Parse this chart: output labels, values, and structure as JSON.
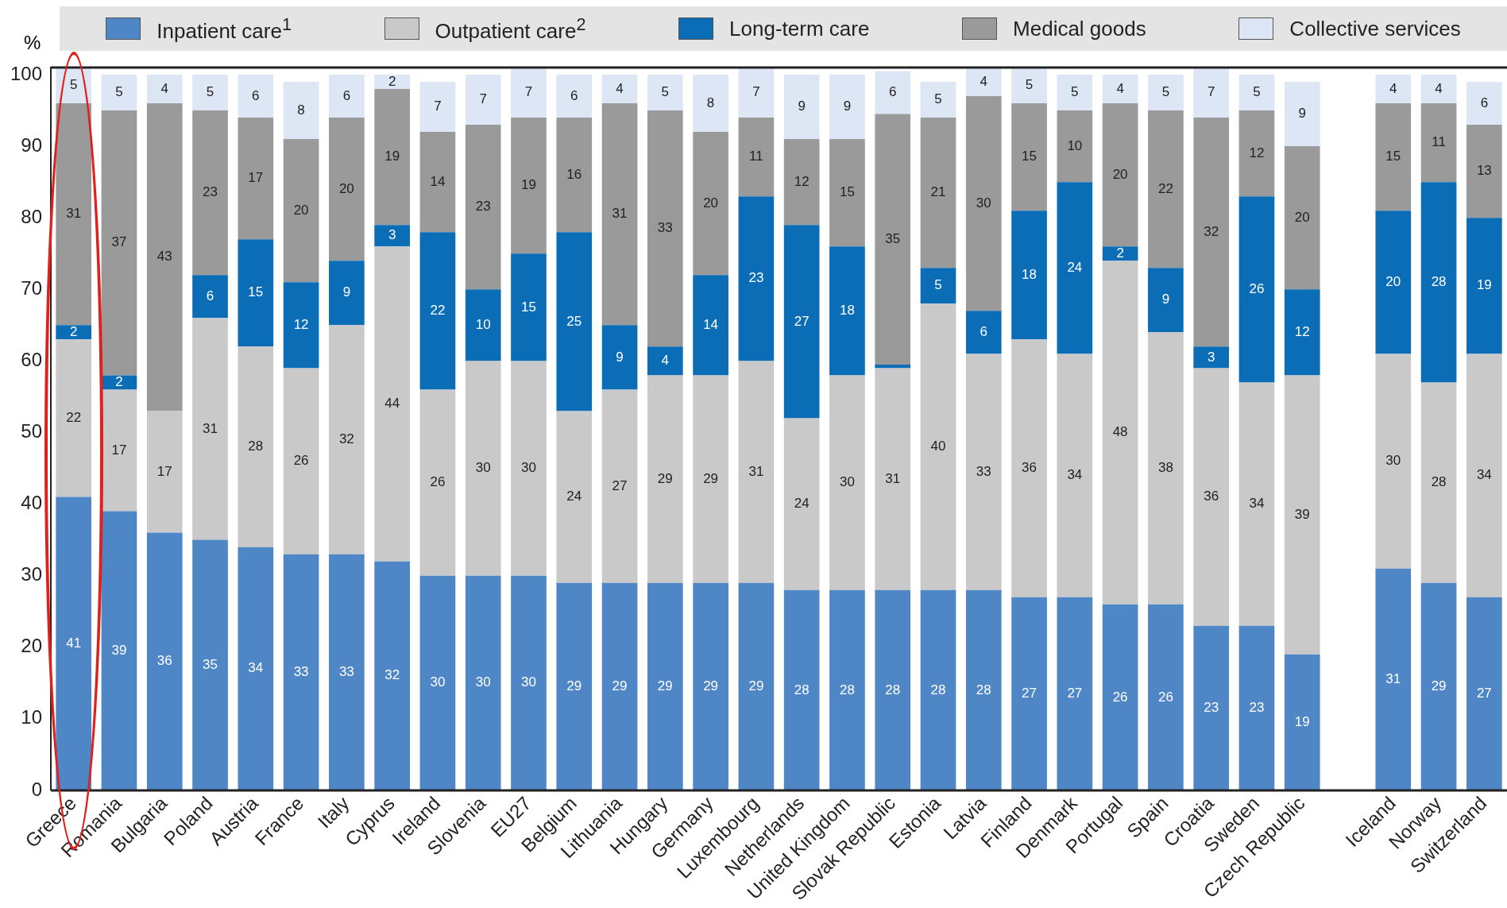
{
  "chart_data": {
    "type": "bar",
    "stacked": true,
    "ylabel": "%",
    "ylim": [
      0,
      101
    ],
    "yticks": [
      0,
      10,
      20,
      30,
      40,
      50,
      60,
      70,
      80,
      90,
      100
    ],
    "grid": false,
    "legend": "top",
    "data_labels": true,
    "categories": [
      "Greece",
      "Romania",
      "Bulgaria",
      "Poland",
      "Austria",
      "France",
      "Italy",
      "Cyprus",
      "Ireland",
      "Slovenia",
      "EU27",
      "Belgium",
      "Lithuania",
      "Hungary",
      "Germany",
      "Luxembourg",
      "Netherlands",
      "United Kingdom",
      "Slovak Republic",
      "Estonia",
      "Latvia",
      "Finland",
      "Denmark",
      "Portugal",
      "Spain",
      "Croatia",
      "Sweden",
      "Czech Republic",
      null,
      "Iceland",
      "Norway",
      "Switzerland"
    ],
    "series": [
      {
        "name": "Inpatient care$^{1}$",
        "color": "#4f86c6",
        "values": [
          41,
          39,
          36,
          35,
          34,
          33,
          33,
          32,
          30,
          30,
          30,
          29,
          29,
          29,
          29,
          29,
          28,
          28,
          28,
          28,
          28,
          27,
          27,
          26,
          26,
          23,
          23,
          19,
          null,
          31,
          29,
          27
        ]
      },
      {
        "name": "Outpatient care$^{2}$",
        "color": "#c9c9c9",
        "values": [
          22,
          17,
          17,
          31,
          28,
          26,
          32,
          44,
          26,
          30,
          30,
          24,
          27,
          29,
          29,
          31,
          24,
          30,
          31,
          40,
          33,
          36,
          34,
          48,
          38,
          36,
          34,
          39,
          null,
          30,
          28,
          34
        ]
      },
      {
        "name": "Long-term care",
        "color": "#0b6db6",
        "values": [
          2,
          2,
          0,
          6,
          15,
          12,
          9,
          3,
          22,
          10,
          15,
          25,
          9,
          4,
          14,
          23,
          27,
          18,
          0.5,
          5,
          6,
          18,
          24,
          2,
          9,
          3,
          26,
          12,
          null,
          20,
          28,
          19
        ],
        "value_labels": [
          "2",
          "2",
          null,
          "6",
          "15",
          "12",
          "9",
          "3",
          "22",
          "10",
          "15",
          "25",
          "9",
          "4",
          "14",
          "23",
          "27",
          "18",
          null,
          "5",
          "6",
          "18",
          "24",
          "2",
          "9",
          "3",
          "26",
          "12",
          null,
          "20",
          "28",
          "19"
        ]
      },
      {
        "name": "Medical goods",
        "color": "#9a9a9a",
        "values": [
          31,
          37,
          43,
          23,
          17,
          20,
          20,
          19,
          14,
          23,
          19,
          16,
          31,
          33,
          20,
          11,
          12,
          15,
          35,
          21,
          30,
          15,
          10,
          20,
          22,
          32,
          12,
          20,
          null,
          15,
          11,
          13
        ]
      },
      {
        "name": "Collective services",
        "color": "#dde6f4",
        "values": [
          5,
          5,
          4,
          5,
          6,
          8,
          6,
          2,
          7,
          7,
          7,
          6,
          4,
          5,
          8,
          7,
          9,
          9,
          6,
          5,
          4,
          5,
          5,
          4,
          5,
          7,
          5,
          9,
          null,
          4,
          4,
          6
        ]
      }
    ]
  }
}
